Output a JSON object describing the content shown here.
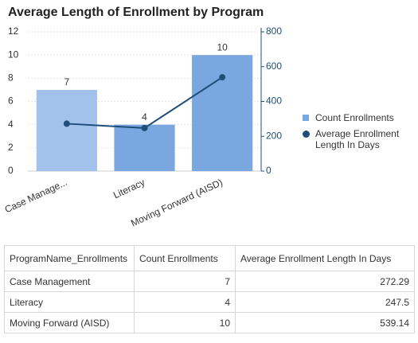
{
  "chart_data": {
    "type": "bar-line",
    "title": "Average Length of Enrollment by Program",
    "categories": [
      "Case Manage...",
      "Literacy",
      "Moving Forward (AISD)"
    ],
    "series": [
      {
        "name": "Count Enrollments",
        "type": "bar",
        "color": "#7ba7e0",
        "colors": [
          "#a3c2eb",
          "#7ba7e0",
          "#7ba7e0"
        ],
        "values": [
          7,
          4,
          10
        ]
      },
      {
        "name": "Average Enrollment Length In Days",
        "type": "line",
        "axis": "y2",
        "color": "#1f4e79",
        "values": [
          272.29,
          247.5,
          539.14
        ]
      }
    ],
    "ylim": [
      0,
      12
    ],
    "yticks": [
      0,
      2,
      4,
      6,
      8,
      10,
      12
    ],
    "y2lim": [
      0,
      800
    ],
    "y2ticks": [
      0,
      200,
      400,
      600,
      800
    ],
    "grid": true
  },
  "table": {
    "columns": [
      "ProgramName_Enrollments",
      "Count Enrollments",
      "Average Enrollment Length In Days"
    ],
    "rows": [
      [
        "Case Management",
        7,
        272.29
      ],
      [
        "Literacy",
        4,
        247.5
      ],
      [
        "Moving Forward (AISD)",
        10,
        539.14
      ]
    ]
  }
}
